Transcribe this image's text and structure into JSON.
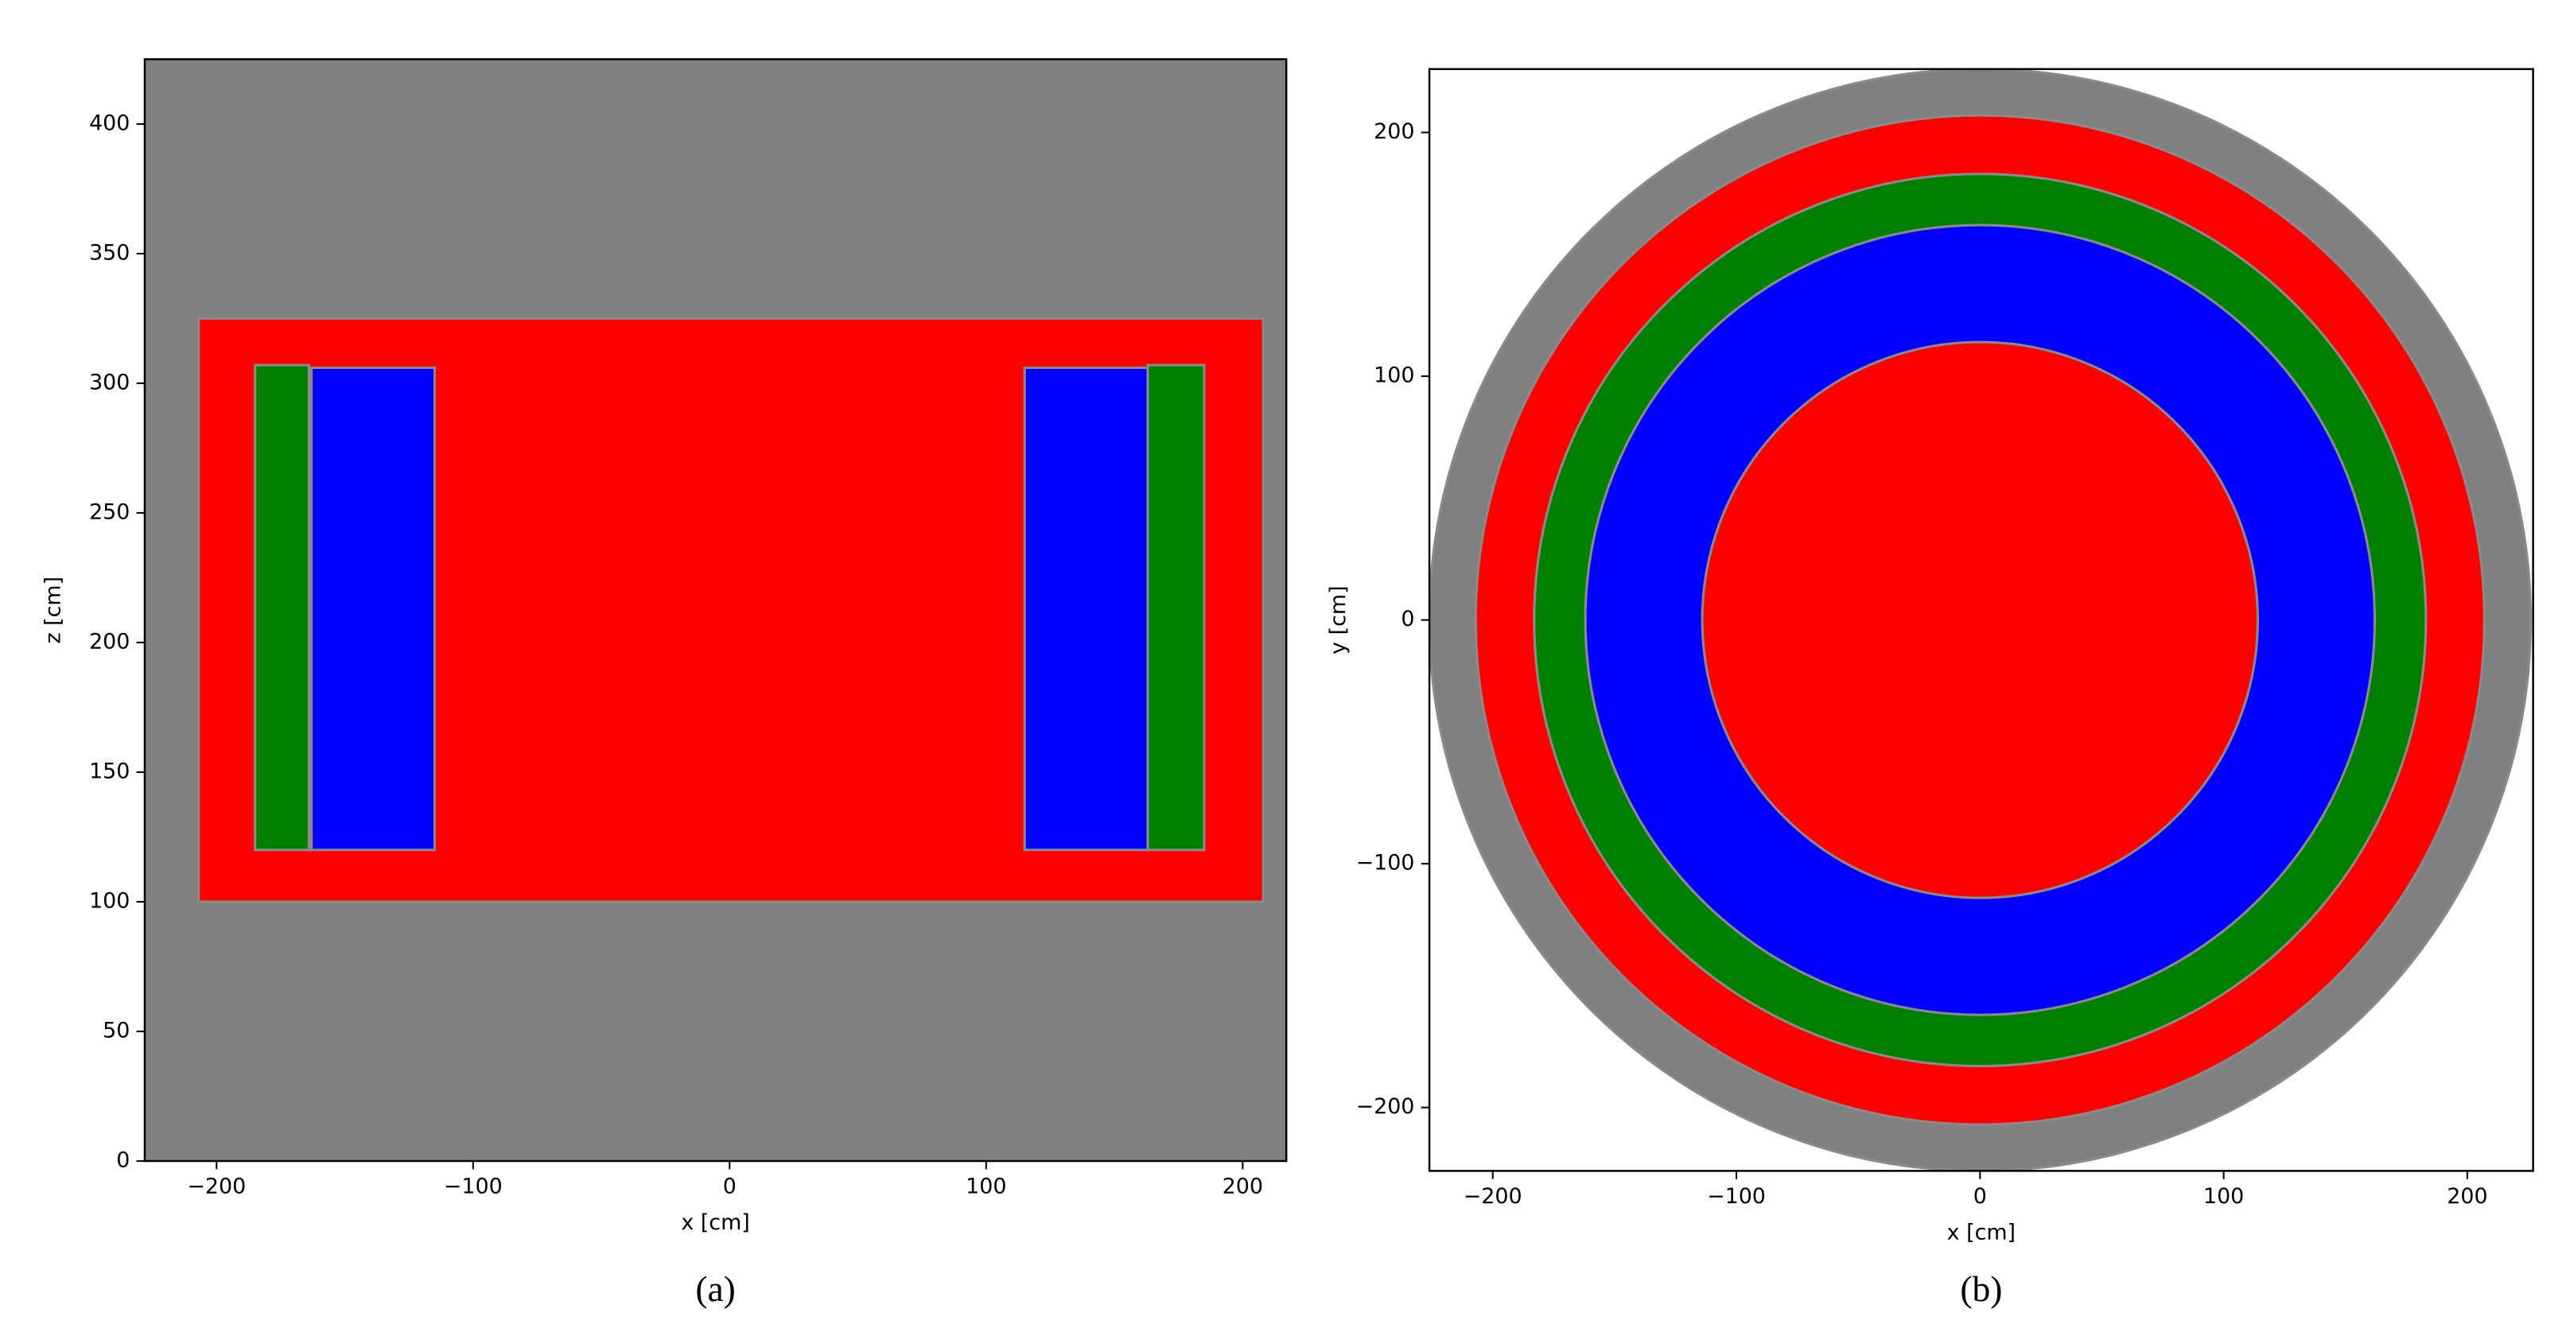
{
  "chart_data": [
    {
      "type": "rects",
      "caption": "(a)",
      "xlabel": "x [cm]",
      "ylabel": "z [cm]",
      "background": "#808080",
      "xlim": [
        -228,
        217
      ],
      "ylim": [
        0,
        425
      ],
      "xticks": [
        {
          "value": -200,
          "label": "−200"
        },
        {
          "value": -100,
          "label": "−100"
        },
        0,
        100,
        200
      ],
      "yticks": [
        0,
        50,
        100,
        150,
        200,
        250,
        300,
        350,
        400
      ],
      "series": [
        {
          "color": "#ff0000",
          "x": [
            -207,
            208
          ],
          "values": [
            100,
            325
          ]
        },
        {
          "color": "#008000",
          "x": [
            -185,
            -164
          ],
          "values": [
            120,
            307
          ]
        },
        {
          "color": "#0000ff",
          "x": [
            -163,
            -115
          ],
          "values": [
            120,
            306
          ]
        },
        {
          "color": "#0000ff",
          "x": [
            115,
            163
          ],
          "values": [
            120,
            306
          ]
        },
        {
          "color": "#008000",
          "x": [
            163,
            185
          ],
          "values": [
            120,
            307
          ]
        }
      ]
    },
    {
      "type": "rings",
      "caption": "(b)",
      "xlabel": "x [cm]",
      "ylabel": "y [cm]",
      "background": "#ffffff",
      "xlim": [
        -226,
        227
      ],
      "ylim": [
        -226,
        226
      ],
      "xticks": [
        {
          "value": -200,
          "label": "−200"
        },
        {
          "value": -100,
          "label": "−100"
        },
        0,
        100,
        200
      ],
      "yticks": [
        {
          "value": -200,
          "label": "−200"
        },
        {
          "value": -100,
          "label": "−100"
        },
        0,
        100,
        200
      ],
      "series": [
        {
          "color": "#808080",
          "values": [
            226
          ]
        },
        {
          "color": "#ff0000",
          "values": [
            207
          ]
        },
        {
          "color": "#008000",
          "values": [
            183
          ]
        },
        {
          "color": "#0000ff",
          "values": [
            162
          ]
        },
        {
          "color": "#ff0000",
          "values": [
            114
          ]
        }
      ]
    }
  ]
}
